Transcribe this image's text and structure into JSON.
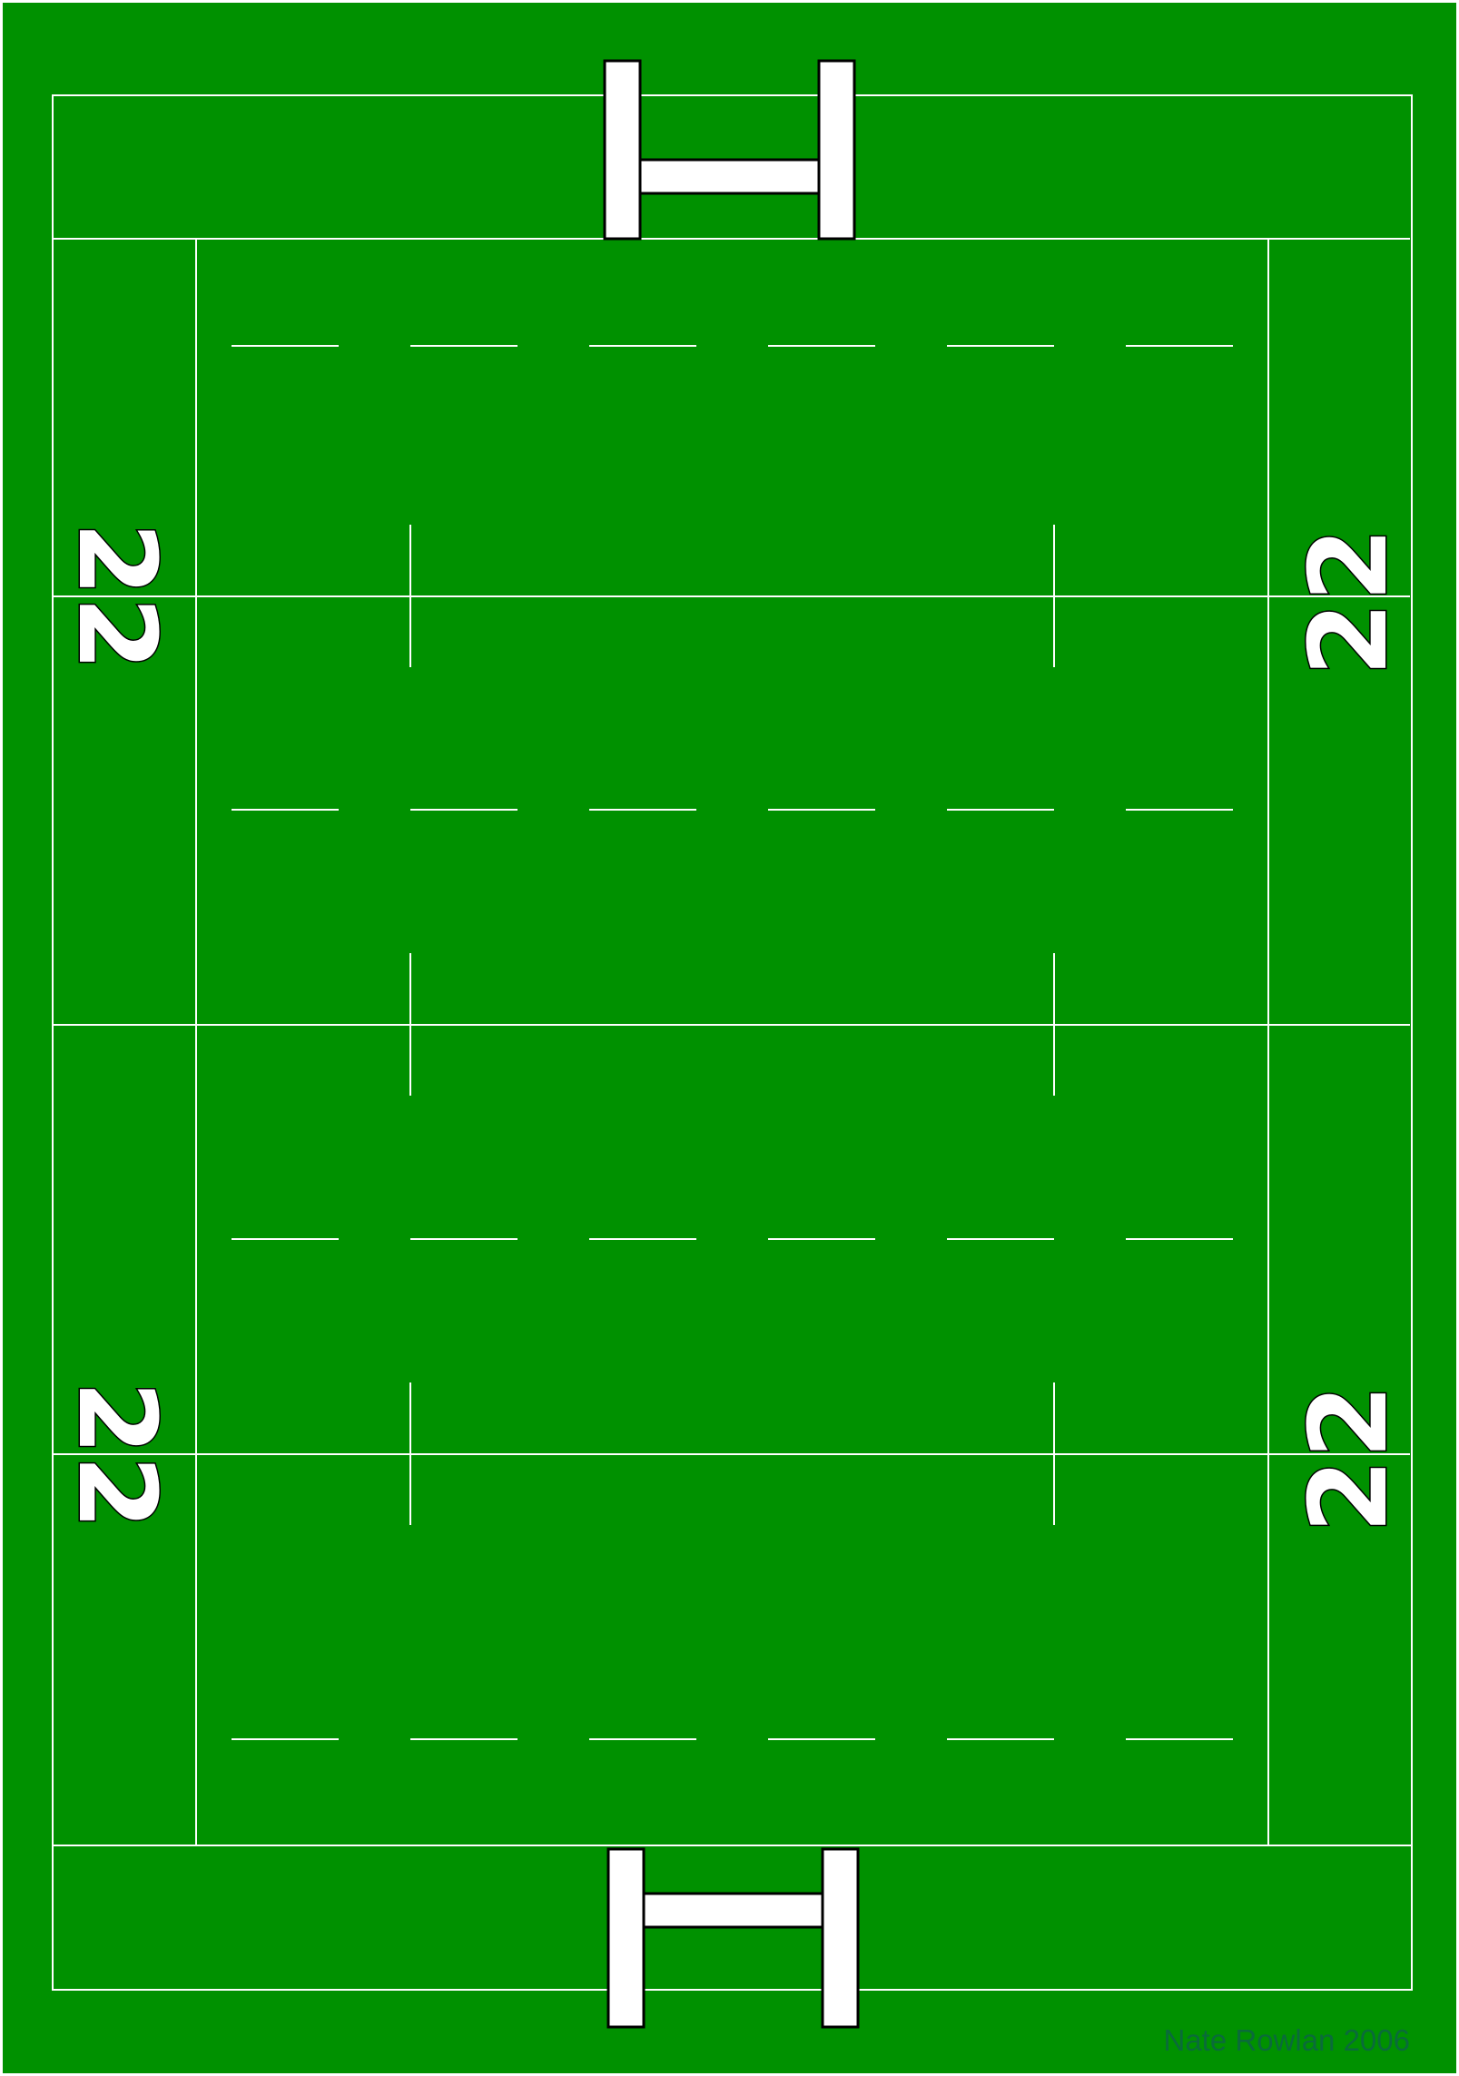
{
  "pitch": {
    "zone_label": "22",
    "credit": "Nate Rowlan 2006"
  },
  "colors": {
    "grass": "#009100",
    "line": "#ffffff",
    "post": "#ffffff",
    "outline": "#000000",
    "credit": "#0a6b3a"
  }
}
